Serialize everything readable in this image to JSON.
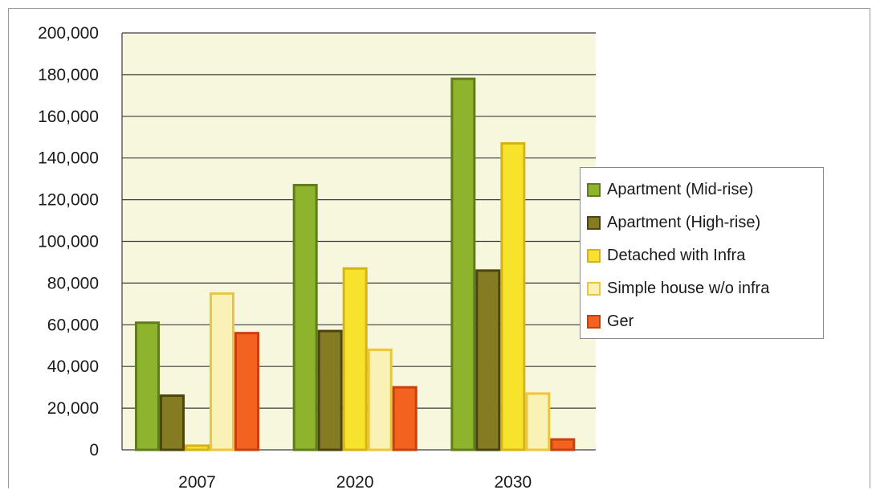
{
  "chart_data": {
    "type": "bar",
    "title": "",
    "xlabel": "",
    "ylabel": "",
    "categories": [
      "2007",
      "2020",
      "2030"
    ],
    "ylim": [
      0,
      200000
    ],
    "yticks": [
      "0",
      "20,000",
      "40,000",
      "60,000",
      "80,000",
      "100,000",
      "120,000",
      "140,000",
      "160,000",
      "180,000",
      "200,000"
    ],
    "grid": true,
    "legend_position": "right",
    "series": [
      {
        "name": "Apartment (Mid-rise)",
        "values": [
          61000,
          127000,
          178000
        ],
        "color": "#8db42c",
        "border": "#5f7d18"
      },
      {
        "name": "Apartment (High-rise)",
        "values": [
          26000,
          57000,
          86000
        ],
        "color": "#857b22",
        "border": "#4c4510"
      },
      {
        "name": "Detached with Infra",
        "values": [
          2000,
          87000,
          147000
        ],
        "color": "#f8e32c",
        "border": "#d9b21a"
      },
      {
        "name": "Simple house w/o infra",
        "values": [
          75000,
          48000,
          27000
        ],
        "color": "#faf2b4",
        "border": "#ecc53c"
      },
      {
        "name": "Ger",
        "values": [
          56000,
          30000,
          5000
        ],
        "color": "#f4621f",
        "border": "#c8400e"
      }
    ],
    "plot_background": "#f7f7dd"
  }
}
